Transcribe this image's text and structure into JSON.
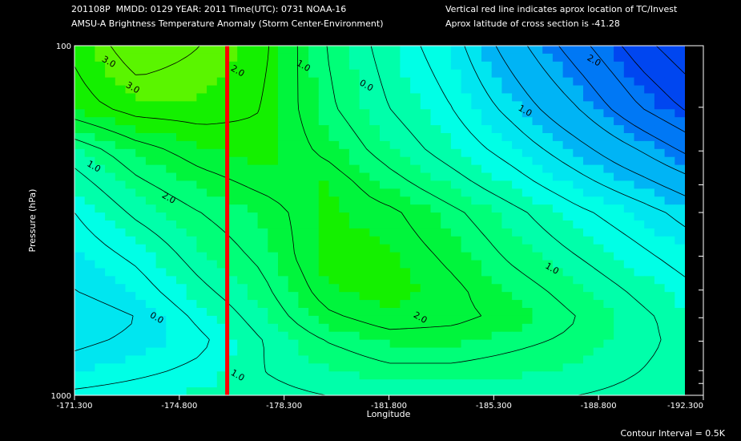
{
  "header": {
    "line1_left": "201108P  MMDD: 0129 YEAR: 2011 Time(UTC): 0731 NOAA-16",
    "line2_left": "AMSU-A Brightness Temperature Anomaly (Storm Center-Environment)",
    "line1_right": "Vertical red line indicates aprox location of TC/Invest",
    "line2_right": "Aprox latitude of cross section is -41.28"
  },
  "footer": {
    "contour_interval": "Contour Interval = 0.5K"
  },
  "colors": {
    "background": "#000000",
    "tc_line": "#ff0000",
    "contour_line": "#000000",
    "text": "#ffffff"
  },
  "chart_data": {
    "type": "heatmap",
    "xlabel": "Longitude",
    "ylabel": "Pressure (hPa)",
    "x_ticks": [
      "-171.300",
      "-174.800",
      "-178.300",
      "-181.800",
      "-185.300",
      "-188.800",
      "-192.300"
    ],
    "x_tick_values": [
      -171.3,
      -174.8,
      -178.3,
      -181.8,
      -185.3,
      -188.8,
      -192.3
    ],
    "y_ticks": [
      "100",
      "1000"
    ],
    "y_tick_values": [
      100,
      1000
    ],
    "y_minor_ticks": [
      150,
      200,
      250,
      300,
      400,
      500,
      600,
      700,
      850,
      925
    ],
    "xlim": [
      -171.3,
      -192.3
    ],
    "ylim": [
      1000,
      100
    ],
    "y_scale": "log",
    "grid": false,
    "tc_longitude": -176.4,
    "contour_interval": 0.5,
    "contour_labels": [
      {
        "text": "3.0",
        "lon": -172.4,
        "p": 113
      },
      {
        "text": "3.0",
        "lon": -173.2,
        "p": 134
      },
      {
        "text": "2.0",
        "lon": -176.7,
        "p": 120
      },
      {
        "text": "1.0",
        "lon": -178.9,
        "p": 116
      },
      {
        "text": "0.0",
        "lon": -181.0,
        "p": 132
      },
      {
        "text": "1.0",
        "lon": -186.3,
        "p": 156
      },
      {
        "text": "2.0",
        "lon": -188.6,
        "p": 112
      },
      {
        "text": "1.0",
        "lon": -171.9,
        "p": 225
      },
      {
        "text": "2.0",
        "lon": -174.4,
        "p": 277
      },
      {
        "text": "0.0",
        "lon": -174.0,
        "p": 610
      },
      {
        "text": "1.0",
        "lon": -176.7,
        "p": 891
      },
      {
        "text": "2.0",
        "lon": -182.8,
        "p": 609
      },
      {
        "text": "1.0",
        "lon": -187.2,
        "p": 441
      }
    ],
    "lon": [
      -171.3,
      -173.4,
      -175.5,
      -177.6,
      -179.7,
      -181.8,
      -183.9,
      -186.0,
      -188.1,
      -190.2,
      -192.3
    ],
    "pressure": [
      100,
      150,
      200,
      250,
      300,
      400,
      500,
      600,
      700,
      850,
      1000
    ],
    "values": [
      [
        2.6,
        3.3,
        3.0,
        2.6,
        1.5,
        0.8,
        0.2,
        -0.8,
        -1.8,
        -2.8,
        -3.6
      ],
      [
        2.3,
        2.7,
        2.7,
        2.5,
        1.6,
        1.0,
        0.5,
        -0.2,
        -1.0,
        -2.0,
        -2.8
      ],
      [
        1.2,
        1.8,
        2.2,
        2.4,
        1.9,
        1.3,
        0.8,
        0.3,
        -0.3,
        -1.0,
        -1.8
      ],
      [
        0.8,
        1.4,
        1.8,
        2.1,
        2.3,
        1.7,
        1.2,
        0.7,
        0.2,
        -0.3,
        -0.9
      ],
      [
        0.5,
        1.1,
        1.5,
        1.8,
        2.3,
        2.1,
        1.6,
        1.1,
        0.6,
        0.2,
        -0.3
      ],
      [
        0.2,
        0.6,
        1.2,
        1.6,
        2.4,
        2.3,
        1.9,
        1.4,
        1.0,
        0.6,
        0.2
      ],
      [
        0.0,
        0.3,
        0.9,
        1.4,
        2.2,
        2.4,
        2.1,
        1.7,
        1.3,
        0.9,
        0.5
      ],
      [
        -0.3,
        0.0,
        0.6,
        1.2,
        1.9,
        2.2,
        2.1,
        1.9,
        1.5,
        1.1,
        0.7
      ],
      [
        -0.1,
        0.1,
        0.4,
        1.0,
        1.5,
        1.8,
        1.8,
        1.6,
        1.4,
        1.1,
        0.8
      ],
      [
        0.2,
        0.4,
        0.6,
        1.0,
        1.2,
        1.4,
        1.4,
        1.3,
        1.2,
        1.0,
        0.8
      ],
      [
        0.6,
        0.7,
        0.8,
        0.9,
        1.0,
        1.1,
        1.1,
        1.1,
        1.0,
        0.9,
        0.8
      ]
    ]
  }
}
